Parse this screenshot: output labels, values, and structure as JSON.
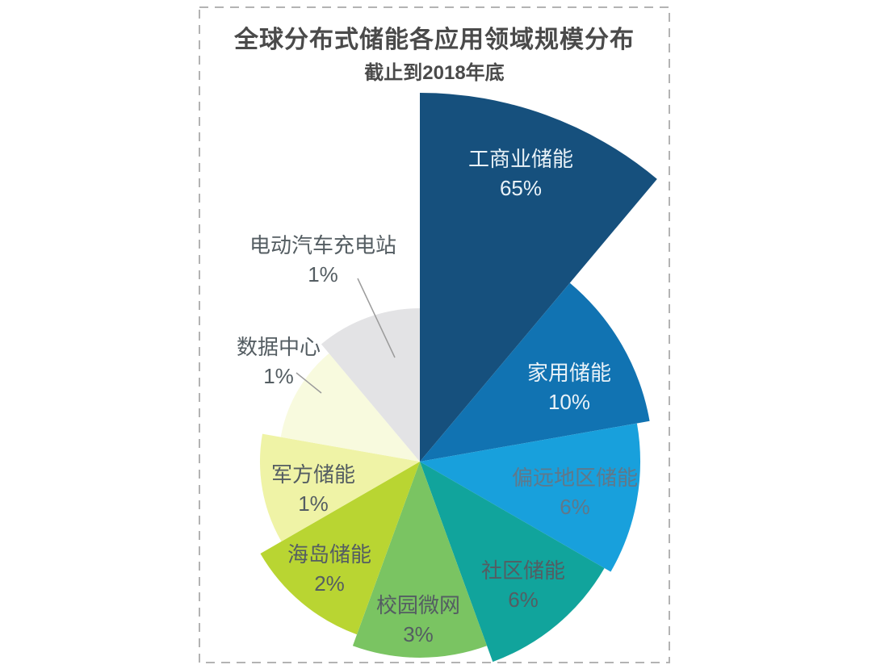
{
  "page": {
    "background": "#ffffff"
  },
  "chart": {
    "title": "全球分布式储能各应用领域规模分布",
    "subtitle": "截止到2018年底",
    "border_color": "#b3b3b3",
    "title_color": "#4a4a4a"
  },
  "chart_data": {
    "type": "pie",
    "variant": "rose (equal 40° sectors, radius scaled by value)",
    "title": "全球分布式储能各应用领域规模分布",
    "subtitle": "截止到2018年底",
    "unit": "%",
    "start": "12 o'clock, clockwise",
    "legend": "none (labels on/next to slices)",
    "categories": [
      "工商业储能",
      "家用储能",
      "偏远地区储能",
      "社区储能",
      "校园微网",
      "海岛储能",
      "军方储能",
      "数据中心",
      "电动汽车充电站"
    ],
    "values": [
      65,
      10,
      6,
      6,
      3,
      2,
      1,
      1,
      1
    ],
    "slices": [
      {
        "label": "工商业储能",
        "value": 65,
        "pct": "65%",
        "color": "#16507d",
        "label_color": "#e9f2f8",
        "label_placement": "inside"
      },
      {
        "label": "家用储能",
        "value": 10,
        "pct": "10%",
        "color": "#1173b2",
        "label_color": "#e9f2f8",
        "label_placement": "inside"
      },
      {
        "label": "偏远地区储能",
        "value": 6,
        "pct": "6%",
        "color": "#18a0dc",
        "label_color": "#60788a",
        "label_placement": "inside"
      },
      {
        "label": "社区储能",
        "value": 6,
        "pct": "6%",
        "color": "#11a49c",
        "label_color": "#545d62",
        "label_placement": "inside"
      },
      {
        "label": "校园微网",
        "value": 3,
        "pct": "3%",
        "color": "#7ac462",
        "label_color": "#545d62",
        "label_placement": "inside"
      },
      {
        "label": "海岛储能",
        "value": 2,
        "pct": "2%",
        "color": "#b9d532",
        "label_color": "#545d62",
        "label_placement": "inside"
      },
      {
        "label": "军方储能",
        "value": 1,
        "pct": "1%",
        "color": "#eff3a6",
        "label_color": "#545d62",
        "label_placement": "inside"
      },
      {
        "label": "数据中心",
        "value": 1,
        "pct": "1%",
        "color": "#f8fade",
        "label_color": "#545d62",
        "label_placement": "outside"
      },
      {
        "label": "电动汽车充电站",
        "value": 1,
        "pct": "1%",
        "color": "#e3e3e5",
        "label_color": "#545d62",
        "label_placement": "outside"
      }
    ]
  }
}
